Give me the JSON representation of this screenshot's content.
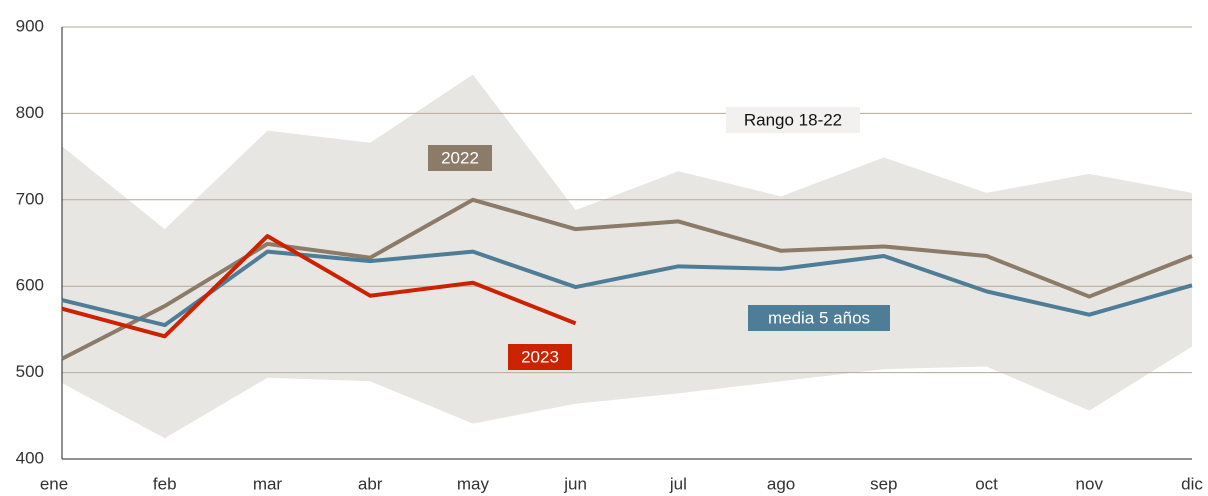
{
  "chart_data": {
    "type": "line",
    "categories": [
      "ene",
      "feb",
      "mar",
      "abr",
      "may",
      "jun",
      "jul",
      "ago",
      "sep",
      "oct",
      "nov",
      "dic"
    ],
    "ylim": [
      400,
      900
    ],
    "yticks": [
      400,
      500,
      600,
      700,
      800,
      900
    ],
    "grid": true,
    "band": {
      "name": "Rango 18-22",
      "color": "#e8e6e3",
      "low": [
        488,
        424,
        494,
        490,
        441,
        464,
        476,
        490,
        504,
        507,
        456,
        530
      ],
      "high": [
        762,
        666,
        780,
        766,
        845,
        688,
        733,
        704,
        749,
        708,
        730,
        708
      ]
    },
    "series": [
      {
        "name": "2022",
        "color": "#8c7b68",
        "values": [
          516,
          577,
          649,
          633,
          700,
          666,
          675,
          641,
          646,
          635,
          588,
          635
        ]
      },
      {
        "name": "media 5 años",
        "color": "#4e7d98",
        "values": [
          584,
          555,
          640,
          629,
          640,
          599,
          623,
          620,
          635,
          594,
          567,
          601
        ]
      },
      {
        "name": "2023",
        "color": "#cc2200",
        "values": [
          574,
          542,
          658,
          589,
          604,
          557,
          null,
          null,
          null,
          null,
          null,
          null
        ]
      }
    ]
  }
}
